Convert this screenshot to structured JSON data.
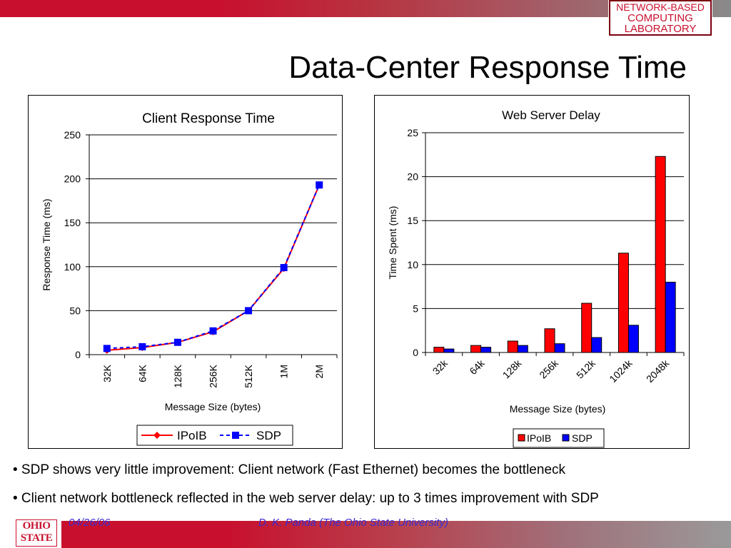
{
  "slide": {
    "title": "Data-Center Response Time",
    "lab_logo": [
      "NETWORK-BASED",
      "COMPUTING",
      "LABORATORY"
    ],
    "bullets": [
      "• SDP shows very little improvement: Client network (Fast Ethernet) becomes the bottleneck",
      "• Client network bottleneck reflected in the web server delay: up to 3 times improvement with SDP"
    ],
    "footer_date": "04/26/06",
    "footer_author": "D. K. Panda (The Ohio State University)",
    "osu_logo": [
      "OHIO",
      "STATE"
    ],
    "colors": {
      "accent": "#c8102e",
      "footer_text": "#3b2bd1"
    }
  },
  "chart_data": [
    {
      "type": "line",
      "title": "Client Response Time",
      "xlabel": "Message Size (bytes)",
      "ylabel": "Response Time (ms)",
      "categories": [
        "32K",
        "64K",
        "128K",
        "256K",
        "512K",
        "1M",
        "2M"
      ],
      "ylim": [
        0,
        250
      ],
      "yticks": [
        0,
        50,
        100,
        150,
        200,
        250
      ],
      "grid": true,
      "legend": "bottom",
      "series": [
        {
          "name": "IPoIB",
          "color": "#ff0000",
          "marker": "diamond",
          "dash": false,
          "values": [
            5,
            8,
            14,
            26,
            50,
            98,
            193
          ]
        },
        {
          "name": "SDP",
          "color": "#0000ff",
          "marker": "square",
          "dash": true,
          "values": [
            7,
            9,
            14,
            27,
            50,
            99,
            193
          ]
        }
      ]
    },
    {
      "type": "bar",
      "title": "Web Server Delay",
      "xlabel": "Message Size (bytes)",
      "ylabel": "Time Spent (ms)",
      "categories": [
        "32k",
        "64k",
        "128k",
        "256k",
        "512k",
        "1024k",
        "2048k"
      ],
      "ylim": [
        0,
        25
      ],
      "yticks": [
        0,
        5,
        10,
        15,
        20,
        25
      ],
      "grid": true,
      "legend": "bottom",
      "series": [
        {
          "name": "IPoIB",
          "color": "#ff0000",
          "values": [
            0.6,
            0.8,
            1.3,
            2.7,
            5.6,
            11.3,
            22.3
          ]
        },
        {
          "name": "SDP",
          "color": "#0000ff",
          "values": [
            0.4,
            0.6,
            0.8,
            1.0,
            1.7,
            3.1,
            8.0
          ]
        }
      ]
    }
  ]
}
